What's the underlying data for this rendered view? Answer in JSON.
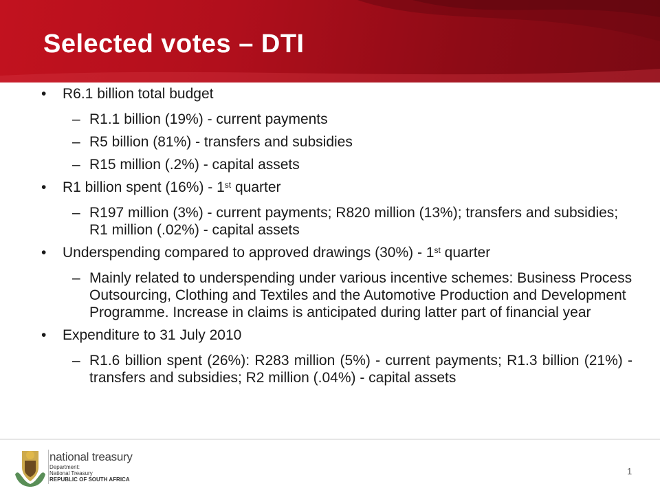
{
  "slide": {
    "title": "Selected votes – DTI",
    "page_number": "1"
  },
  "bullets": [
    {
      "text": "R6.1 billion total budget",
      "subs": [
        "R1.1 billion (19%) - current payments",
        "R5 billion (81%) - transfers and subsidies",
        "R15 million (.2%) - capital assets"
      ]
    },
    {
      "text_pre": "R1 billion spent (16%) - 1",
      "text_sup": "st",
      "text_post": " quarter",
      "subs": [
        "R197 million (3%) - current payments; R820 million (13%); transfers and subsidies; R1 million (.02%) - capital assets"
      ]
    },
    {
      "text_pre": "Underspending compared to approved drawings (30%) - 1",
      "text_sup": "st",
      "text_post": " quarter",
      "subs": [
        "Mainly related to underspending under various incentive schemes:  Business Process Outsourcing, Clothing and Textiles and the Automotive Production and Development Programme. Increase in claims is anticipated during latter part of financial year"
      ]
    },
    {
      "text": "Expenditure to 31 July 2010",
      "subs": [
        "R1.6 billion spent (26%): R283 million (5%) - current payments; R1.3 billion (21%) - transfers and subsidies; R2 million (.04%) - capital assets"
      ]
    }
  ],
  "symbols": {
    "bullet": "•",
    "dash": "–"
  },
  "logo": {
    "brand": "national treasury",
    "line1": "Department:",
    "line2": "National Treasury",
    "line3": "REPUBLIC OF SOUTH AFRICA"
  },
  "colors": {
    "header_red": "#b10f1c",
    "title_text": "#ffffff"
  }
}
